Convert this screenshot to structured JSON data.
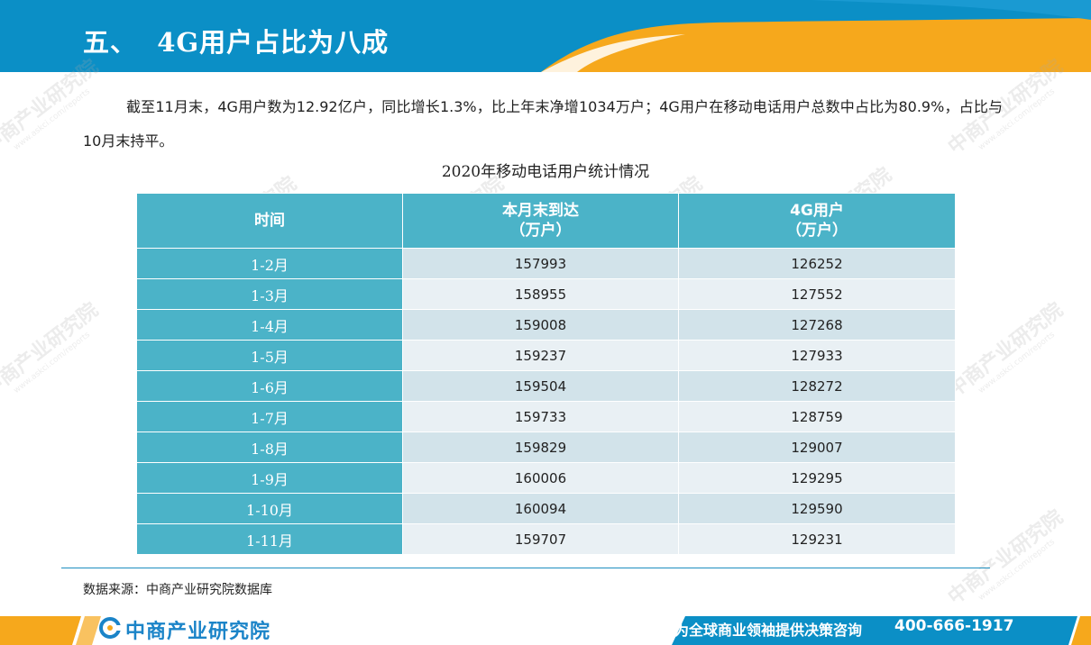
{
  "header": {
    "title": "五、  4G用户占比为八成"
  },
  "intro": "截至11月末，4G用户数为12.92亿户，同比增长1.3%，比上年末净增1034万户；4G用户在移动电话用户总数中占比为80.9%，占比与10月末持平。",
  "table": {
    "caption": "2020年移动电话用户统计情况",
    "headers": {
      "col1": "时间",
      "col2_line1": "本月末到达",
      "col2_line2": "（万户）",
      "col3_line1": "4G用户",
      "col3_line2": "（万户）"
    },
    "rows": [
      {
        "period": "1-2月",
        "total": "157993",
        "lte": "126252"
      },
      {
        "period": "1-3月",
        "total": "158955",
        "lte": "127552"
      },
      {
        "period": "1-4月",
        "total": "159008",
        "lte": "127268"
      },
      {
        "period": "1-5月",
        "total": "159237",
        "lte": "127933"
      },
      {
        "period": "1-6月",
        "total": "159504",
        "lte": "128272"
      },
      {
        "period": "1-7月",
        "total": "159733",
        "lte": "128759"
      },
      {
        "period": "1-8月",
        "total": "159829",
        "lte": "129007"
      },
      {
        "period": "1-9月",
        "total": "160006",
        "lte": "129295"
      },
      {
        "period": "1-10月",
        "total": "160094",
        "lte": "129590"
      },
      {
        "period": "1-11月",
        "total": "159707",
        "lte": "129231"
      }
    ]
  },
  "source": "数据来源：中商产业研究院数据库",
  "footer": {
    "logo_text": "中商产业研究院",
    "slogan": "为全球商业领袖提供决策咨询",
    "hotline": "400-666-1917"
  },
  "watermark": {
    "text": "中商产业研究院",
    "url": "www.askci.com/reports"
  },
  "colors": {
    "header_blue": "#0b8fc6",
    "accent_orange": "#f6a81c",
    "table_header": "#4bb3c8",
    "row_light": "#e9f0f4",
    "row_dark": "#d2e3ea"
  }
}
